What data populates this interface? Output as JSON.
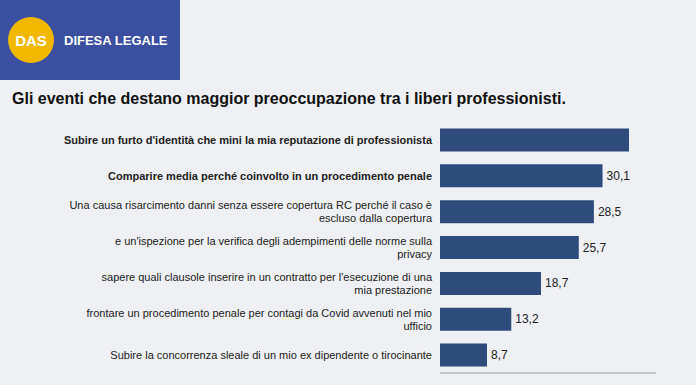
{
  "logo": "DAS",
  "brand": "DIFESA LEGALE",
  "chart_data": {
    "type": "bar",
    "orientation": "horizontal",
    "title": "Gli eventi che destano maggior preoccupazione tra i liberi professionisti.",
    "categories": [
      "Subire un furto d'identità che mini la mia reputazione di professionista",
      "Comparire media perché coinvolto in un procedimento penale",
      "Una causa risarcimento danni senza essere copertura RC perché il caso è escluso dalla copertura",
      "e un'ispezione per la verifica degli adempimenti delle norme sulla privacy",
      "sapere quali clausole inserire in un contratto per l'esecuzione di una mia prestazione",
      "frontare un procedimento penale per contagi da Covid avvenuti nel mio ufficio",
      "Subire la concorrenza sleale di un mio ex dipendente o tirocinante"
    ],
    "values": [
      35,
      30.1,
      28.5,
      25.7,
      18.7,
      13.2,
      8.7
    ],
    "value_labels": [
      null,
      "30,1",
      "28,5",
      "25,7",
      "18,7",
      "13,2",
      "8,7"
    ],
    "color": "#2f4b7c",
    "xlim": [
      0,
      40
    ],
    "xticks": [],
    "tick_labels": "y",
    "data_labels": true,
    "grid": false
  }
}
